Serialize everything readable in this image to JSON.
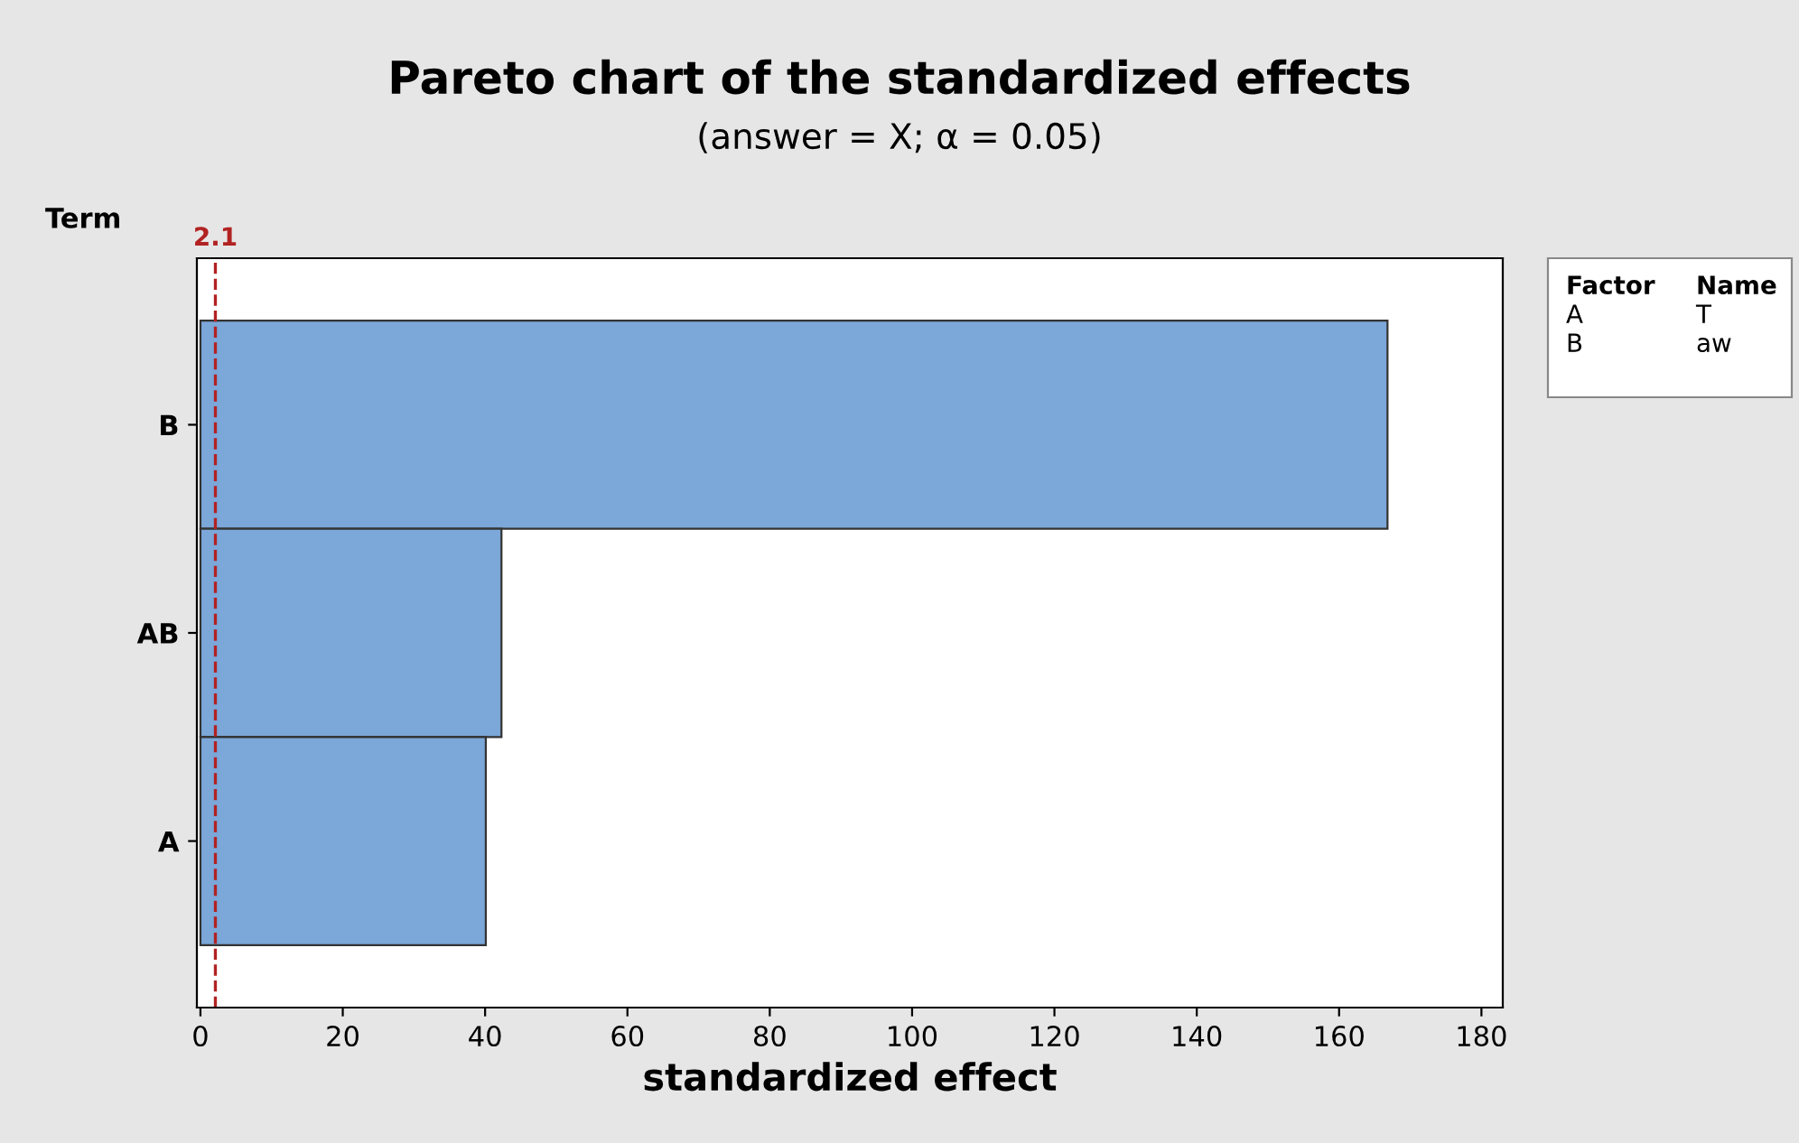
{
  "chart_data": {
    "type": "bar",
    "orientation": "horizontal",
    "title": "Pareto chart of the standardized effects",
    "subtitle": "(answer = X; α = 0.05)",
    "xlabel": "standardized effect",
    "ylabel": "Term",
    "categories": [
      "B",
      "AB",
      "A"
    ],
    "values": [
      166.8,
      42.3,
      40.1
    ],
    "color": "#7ba7d9",
    "xlim": [
      -0.5,
      183
    ],
    "xticks": [
      0,
      20,
      40,
      60,
      80,
      100,
      120,
      140,
      160,
      180
    ],
    "ref_lines": [
      {
        "axis": "x",
        "value": 2.1,
        "label": "2.1",
        "color": "#b22222",
        "line_style": "dashed"
      }
    ],
    "annotations": [
      "Factor",
      "Name",
      "A",
      "T",
      "B",
      "aw"
    ],
    "grid": false,
    "legend": false
  }
}
